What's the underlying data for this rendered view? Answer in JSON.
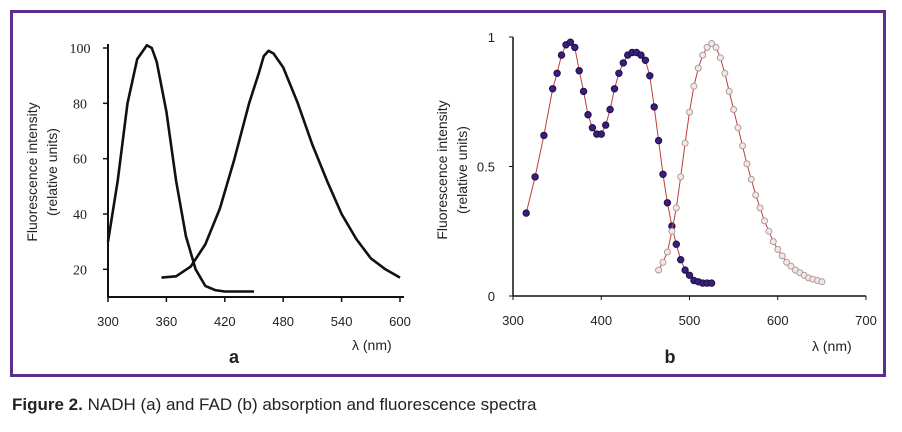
{
  "caption": {
    "label": "Figure 2.",
    "text": " NADH (a) and FAD (b) absorption and fluorescence spectra"
  },
  "colors": {
    "frame": "#5b2f8f",
    "panel_b_absorption_markers": "#3a1f7a",
    "panel_b_fluorescence_markers": "#b09a9a",
    "panel_b_line": "#c23b3b"
  },
  "chart_data": [
    {
      "panel": "a",
      "type": "line",
      "xlabel": "λ (nm)",
      "ylabel": [
        "Fluorescence intensity",
        "(relative units)"
      ],
      "xlim": [
        300,
        600
      ],
      "ylim": [
        10,
        100
      ],
      "xticks": [
        "300",
        "360",
        "420",
        "480",
        "540",
        "600"
      ],
      "yticks": [
        "20",
        "40",
        "60",
        "80",
        "100"
      ],
      "series": [
        {
          "x": [
            300,
            310,
            320,
            330,
            340,
            345,
            350,
            360,
            370,
            380,
            390,
            400,
            410,
            420,
            430,
            440,
            450
          ],
          "y": [
            30,
            52,
            80,
            96,
            101,
            100,
            95,
            77,
            52,
            32,
            20,
            14,
            12.5,
            12,
            12,
            12,
            12
          ]
        },
        {
          "x": [
            355,
            370,
            385,
            400,
            415,
            430,
            445,
            455,
            460,
            465,
            470,
            480,
            495,
            510,
            525,
            540,
            555,
            570,
            585,
            600
          ],
          "y": [
            17,
            17.5,
            21,
            29,
            42,
            60,
            80,
            91,
            97,
            99,
            98,
            93,
            80,
            65,
            52,
            40,
            31,
            24,
            20,
            17
          ]
        }
      ]
    },
    {
      "panel": "b",
      "type": "scatter",
      "xlabel": "λ (nm)",
      "ylabel": [
        "Fluorescence intensity",
        "(relative units)"
      ],
      "xlim": [
        300,
        700
      ],
      "ylim": [
        0,
        1
      ],
      "xticks": [
        "300",
        "400",
        "500",
        "600",
        "700"
      ],
      "yticks": [
        "0",
        "0.5",
        "1"
      ],
      "series": [
        {
          "x": [
            315,
            325,
            335,
            345,
            350,
            355,
            360,
            365,
            370,
            375,
            380,
            385,
            390,
            395,
            400,
            405,
            410,
            415,
            420,
            425,
            430,
            435,
            440,
            445,
            450,
            455,
            460,
            465,
            470,
            475,
            480,
            485,
            490,
            495,
            500,
            505,
            510,
            515,
            520,
            525
          ],
          "y": [
            0.32,
            0.46,
            0.62,
            0.8,
            0.86,
            0.93,
            0.97,
            0.98,
            0.96,
            0.87,
            0.79,
            0.7,
            0.65,
            0.625,
            0.625,
            0.66,
            0.72,
            0.8,
            0.86,
            0.9,
            0.93,
            0.94,
            0.94,
            0.93,
            0.91,
            0.85,
            0.73,
            0.6,
            0.47,
            0.36,
            0.27,
            0.2,
            0.14,
            0.1,
            0.08,
            0.06,
            0.055,
            0.05,
            0.05,
            0.05
          ]
        },
        {
          "x": [
            465,
            470,
            475,
            480,
            485,
            490,
            495,
            500,
            505,
            510,
            515,
            520,
            525,
            530,
            535,
            540,
            545,
            550,
            555,
            560,
            565,
            570,
            575,
            580,
            585,
            590,
            595,
            600,
            605,
            610,
            615,
            620,
            625,
            630,
            635,
            640,
            645,
            650
          ],
          "y": [
            0.1,
            0.13,
            0.17,
            0.25,
            0.34,
            0.46,
            0.59,
            0.71,
            0.81,
            0.88,
            0.93,
            0.96,
            0.975,
            0.96,
            0.92,
            0.86,
            0.79,
            0.72,
            0.65,
            0.58,
            0.51,
            0.45,
            0.39,
            0.34,
            0.29,
            0.25,
            0.21,
            0.18,
            0.155,
            0.13,
            0.115,
            0.1,
            0.09,
            0.08,
            0.07,
            0.065,
            0.06,
            0.055
          ]
        }
      ]
    }
  ]
}
